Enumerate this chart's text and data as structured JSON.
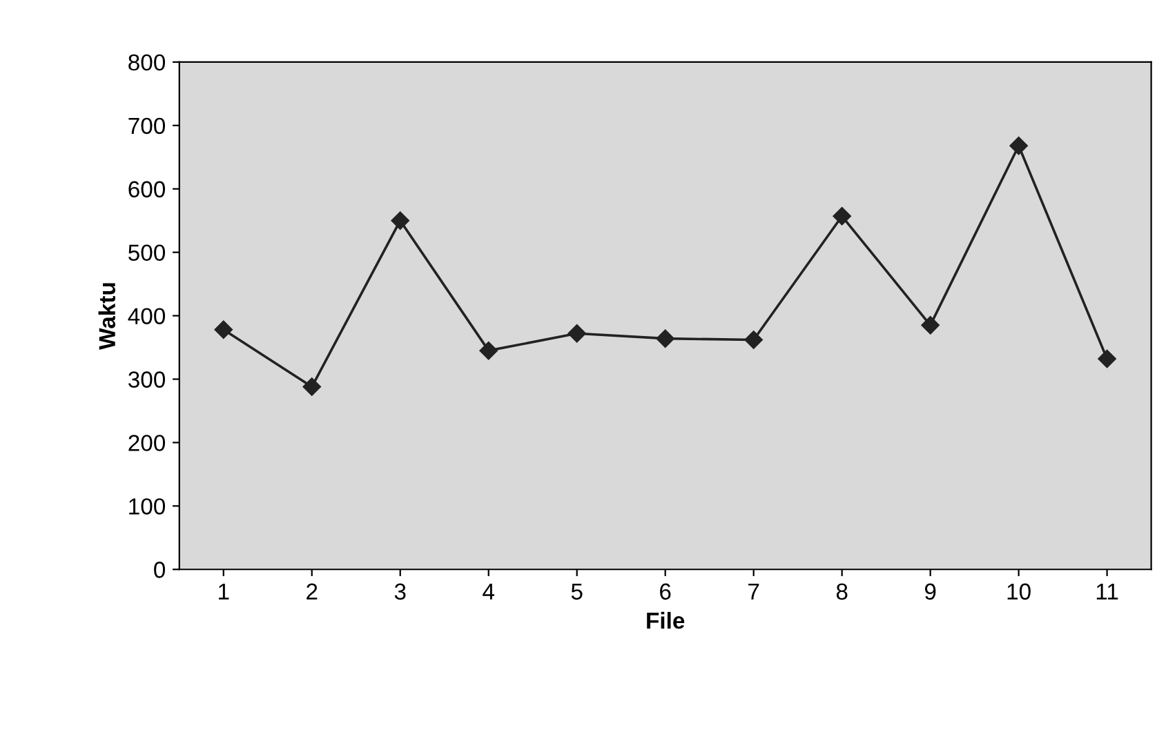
{
  "chart_data": {
    "type": "line",
    "xlabel": "File",
    "ylabel": "Waktu",
    "categories": [
      "1",
      "2",
      "3",
      "4",
      "5",
      "6",
      "7",
      "8",
      "9",
      "10",
      "11"
    ],
    "series": [
      {
        "color": "#222222",
        "values": [
          378,
          288,
          550,
          345,
          372,
          364,
          362,
          557,
          385,
          668,
          332
        ]
      }
    ],
    "ylim": [
      0,
      800
    ],
    "yticks": [
      0,
      100,
      200,
      300,
      400,
      500,
      600,
      700,
      800
    ],
    "grid": false,
    "legend": false,
    "marker": "diamond",
    "line_style": "solid"
  }
}
